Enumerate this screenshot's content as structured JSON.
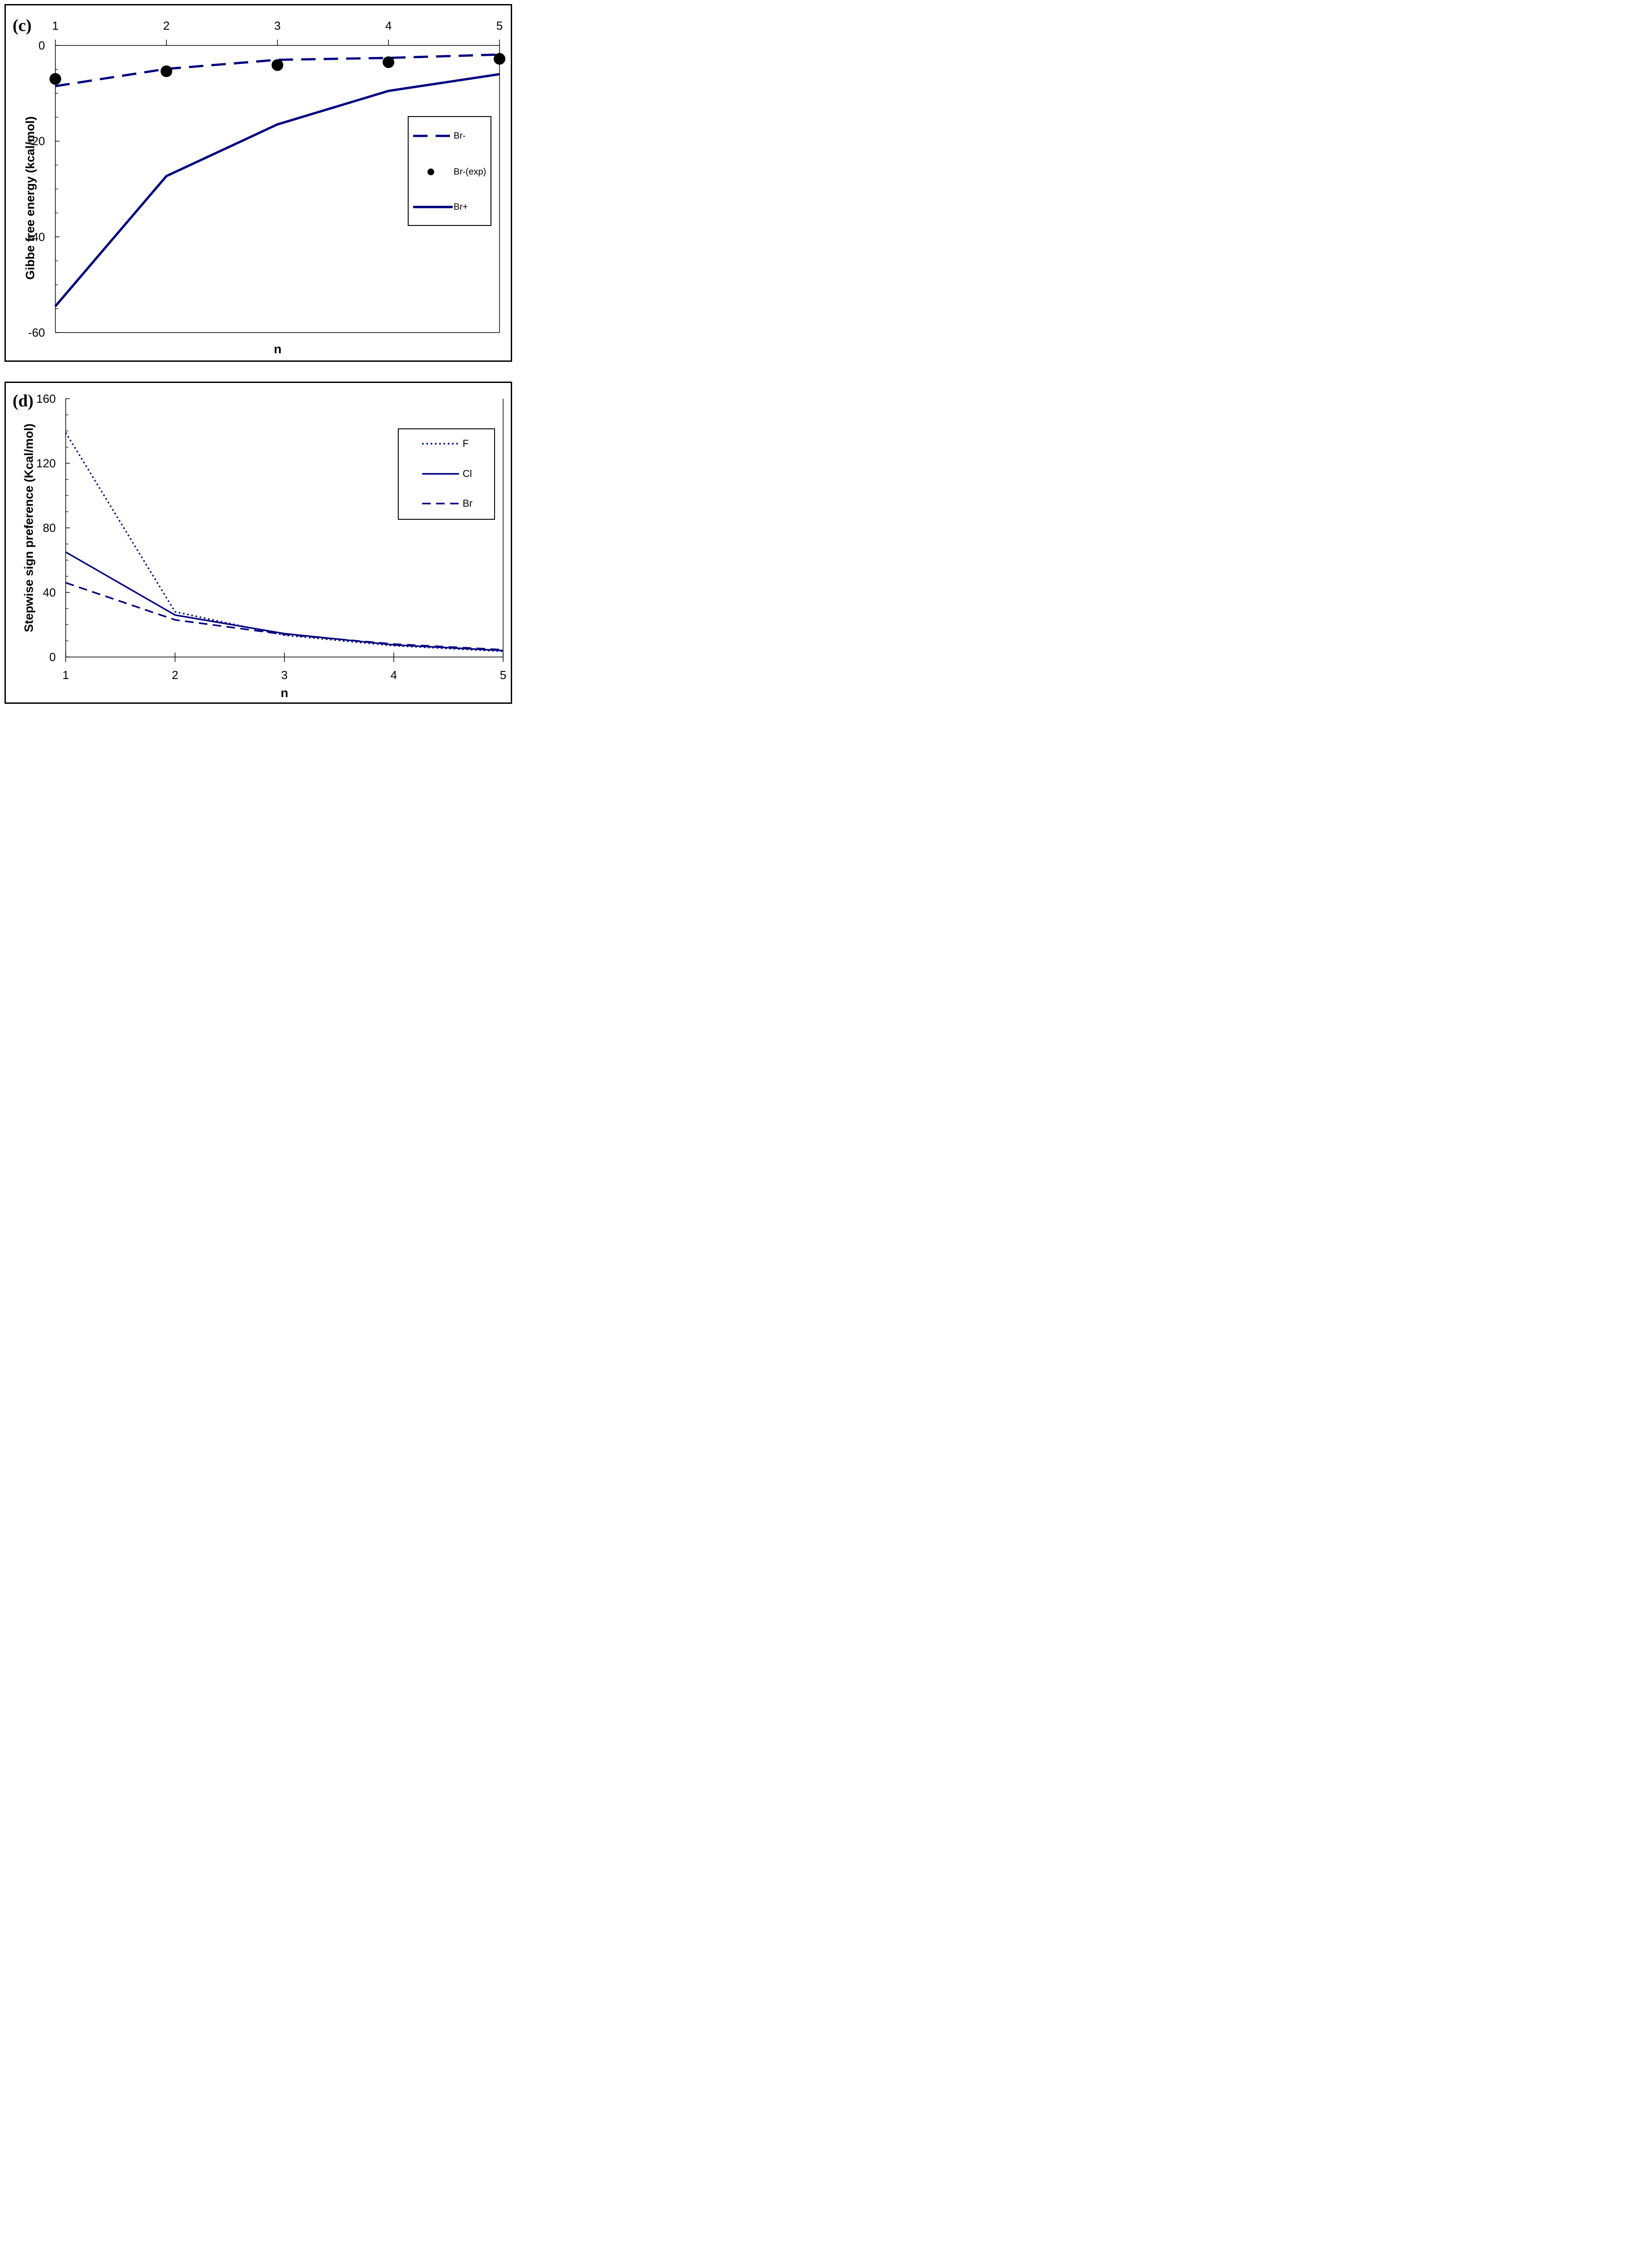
{
  "page": {
    "background": "#ffffff"
  },
  "colors": {
    "navy": "#000080",
    "black": "#000000"
  },
  "chart_data": [
    {
      "id": "c",
      "type": "line",
      "panel_label": "(c)",
      "xlabel": "n",
      "ylabel": "Gibbe free energy (kcal/mol)",
      "x": [
        1,
        2,
        3,
        4,
        5
      ],
      "x_tick_labels": [
        "1",
        "2",
        "3",
        "4",
        "5"
      ],
      "xlim": [
        1,
        5
      ],
      "ylim": [
        -60,
        0
      ],
      "y_ticks": [
        0,
        -20,
        -40,
        -60
      ],
      "y_minor_step": 5,
      "x_axis_position": "top",
      "grid": false,
      "legend_position": "right-inside",
      "series": [
        {
          "name": "Br-",
          "style": "dashed",
          "color": "#000080",
          "values": [
            -8.5,
            -4.9,
            -3.0,
            -2.6,
            -1.9
          ]
        },
        {
          "name": "Br-(exp)",
          "style": "dot",
          "color": "#000000",
          "values": [
            -7.0,
            -5.4,
            -4.1,
            -3.5,
            -2.8
          ]
        },
        {
          "name": "Br+",
          "style": "solid",
          "color": "#000080",
          "values": [
            -54.5,
            -27.3,
            -16.5,
            -9.5,
            -6.0
          ]
        }
      ]
    },
    {
      "id": "d",
      "type": "line",
      "panel_label": "(d)",
      "xlabel": "n",
      "ylabel": "Stepwise sign preference (Kcal/mol)",
      "x": [
        1,
        2,
        3,
        4,
        5
      ],
      "x_tick_labels": [
        "1",
        "2",
        "3",
        "4",
        "5"
      ],
      "xlim": [
        1,
        5
      ],
      "ylim": [
        0,
        160
      ],
      "y_ticks": [
        0,
        40,
        80,
        120,
        160
      ],
      "y_minor_step": 10,
      "x_axis_position": "bottom",
      "grid": false,
      "legend_position": "right-inside",
      "series": [
        {
          "name": "F",
          "style": "dotted",
          "color": "#000080",
          "values": [
            139,
            28,
            13.5,
            7,
            3.5
          ]
        },
        {
          "name": "Cl",
          "style": "solid",
          "color": "#000080",
          "values": [
            65,
            26,
            14.5,
            7.5,
            4
          ]
        },
        {
          "name": "Br",
          "style": "dashed",
          "color": "#000080",
          "values": [
            46,
            23,
            14,
            8,
            4.5
          ]
        }
      ]
    }
  ]
}
